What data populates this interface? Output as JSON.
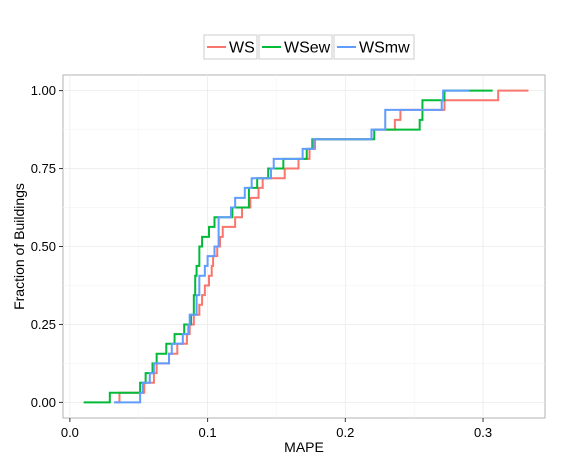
{
  "chart_data": {
    "type": "line",
    "step": true,
    "xlabel": "MAPE",
    "ylabel": "Fraction of Buildings",
    "xlim": [
      -0.005,
      0.345
    ],
    "ylim": [
      -0.05,
      1.05
    ],
    "x_ticks": [
      0.0,
      0.1,
      0.2,
      0.3
    ],
    "x_tick_labels": [
      "0.0",
      "0.1",
      "0.2",
      "0.3"
    ],
    "y_ticks": [
      0.0,
      0.25,
      0.5,
      0.75,
      1.0
    ],
    "y_tick_labels": [
      "0.00",
      "0.25",
      "0.50",
      "0.75",
      "1.00"
    ],
    "grid": true,
    "legend_position": "top",
    "series": [
      {
        "name": "WS",
        "color": "#f8766d",
        "points": [
          [
            0.033,
            0
          ],
          [
            0.036,
            0
          ],
          [
            0.036,
            0.031
          ],
          [
            0.054,
            0.031
          ],
          [
            0.054,
            0.063
          ],
          [
            0.061,
            0.063
          ],
          [
            0.061,
            0.094
          ],
          [
            0.063,
            0.094
          ],
          [
            0.063,
            0.125
          ],
          [
            0.072,
            0.125
          ],
          [
            0.072,
            0.156
          ],
          [
            0.078,
            0.156
          ],
          [
            0.078,
            0.188
          ],
          [
            0.085,
            0.188
          ],
          [
            0.085,
            0.219
          ],
          [
            0.087,
            0.219
          ],
          [
            0.087,
            0.25
          ],
          [
            0.09,
            0.25
          ],
          [
            0.09,
            0.281
          ],
          [
            0.094,
            0.281
          ],
          [
            0.094,
            0.313
          ],
          [
            0.096,
            0.313
          ],
          [
            0.096,
            0.344
          ],
          [
            0.098,
            0.344
          ],
          [
            0.098,
            0.375
          ],
          [
            0.101,
            0.375
          ],
          [
            0.101,
            0.406
          ],
          [
            0.103,
            0.406
          ],
          [
            0.103,
            0.438
          ],
          [
            0.104,
            0.438
          ],
          [
            0.104,
            0.469
          ],
          [
            0.107,
            0.469
          ],
          [
            0.107,
            0.5
          ],
          [
            0.109,
            0.5
          ],
          [
            0.109,
            0.531
          ],
          [
            0.111,
            0.531
          ],
          [
            0.111,
            0.563
          ],
          [
            0.12,
            0.563
          ],
          [
            0.12,
            0.594
          ],
          [
            0.125,
            0.594
          ],
          [
            0.125,
            0.625
          ],
          [
            0.131,
            0.625
          ],
          [
            0.131,
            0.656
          ],
          [
            0.137,
            0.656
          ],
          [
            0.137,
            0.688
          ],
          [
            0.14,
            0.688
          ],
          [
            0.14,
            0.719
          ],
          [
            0.156,
            0.719
          ],
          [
            0.156,
            0.75
          ],
          [
            0.166,
            0.75
          ],
          [
            0.166,
            0.781
          ],
          [
            0.174,
            0.781
          ],
          [
            0.174,
            0.813
          ],
          [
            0.178,
            0.813
          ],
          [
            0.178,
            0.844
          ],
          [
            0.219,
            0.844
          ],
          [
            0.219,
            0.875
          ],
          [
            0.236,
            0.875
          ],
          [
            0.236,
            0.906
          ],
          [
            0.24,
            0.906
          ],
          [
            0.24,
            0.938
          ],
          [
            0.272,
            0.938
          ],
          [
            0.272,
            0.969
          ],
          [
            0.311,
            0.969
          ],
          [
            0.311,
            1.0
          ],
          [
            0.333,
            1.0
          ]
        ]
      },
      {
        "name": "WSew",
        "color": "#00ba38",
        "points": [
          [
            0.01,
            0
          ],
          [
            0.029,
            0
          ],
          [
            0.029,
            0.031
          ],
          [
            0.051,
            0.031
          ],
          [
            0.051,
            0.063
          ],
          [
            0.055,
            0.063
          ],
          [
            0.055,
            0.094
          ],
          [
            0.06,
            0.094
          ],
          [
            0.06,
            0.125
          ],
          [
            0.063,
            0.125
          ],
          [
            0.063,
            0.156
          ],
          [
            0.07,
            0.156
          ],
          [
            0.07,
            0.188
          ],
          [
            0.076,
            0.188
          ],
          [
            0.076,
            0.219
          ],
          [
            0.083,
            0.219
          ],
          [
            0.083,
            0.25
          ],
          [
            0.088,
            0.25
          ],
          [
            0.088,
            0.281
          ],
          [
            0.09,
            0.281
          ],
          [
            0.09,
            0.344
          ],
          [
            0.091,
            0.344
          ],
          [
            0.091,
            0.406
          ],
          [
            0.092,
            0.406
          ],
          [
            0.092,
            0.438
          ],
          [
            0.094,
            0.438
          ],
          [
            0.094,
            0.5
          ],
          [
            0.096,
            0.5
          ],
          [
            0.096,
            0.531
          ],
          [
            0.101,
            0.531
          ],
          [
            0.101,
            0.563
          ],
          [
            0.105,
            0.563
          ],
          [
            0.105,
            0.594
          ],
          [
            0.118,
            0.594
          ],
          [
            0.118,
            0.625
          ],
          [
            0.13,
            0.625
          ],
          [
            0.13,
            0.688
          ],
          [
            0.136,
            0.688
          ],
          [
            0.136,
            0.719
          ],
          [
            0.144,
            0.719
          ],
          [
            0.144,
            0.75
          ],
          [
            0.155,
            0.75
          ],
          [
            0.155,
            0.781
          ],
          [
            0.172,
            0.781
          ],
          [
            0.172,
            0.813
          ],
          [
            0.176,
            0.813
          ],
          [
            0.176,
            0.844
          ],
          [
            0.221,
            0.844
          ],
          [
            0.221,
            0.875
          ],
          [
            0.254,
            0.875
          ],
          [
            0.254,
            0.906
          ],
          [
            0.256,
            0.906
          ],
          [
            0.256,
            0.969
          ],
          [
            0.272,
            0.969
          ],
          [
            0.272,
            1.0
          ],
          [
            0.307,
            1.0
          ]
        ]
      },
      {
        "name": "WSmw",
        "color": "#619cff",
        "points": [
          [
            0.032,
            0
          ],
          [
            0.051,
            0
          ],
          [
            0.051,
            0.031
          ],
          [
            0.053,
            0.031
          ],
          [
            0.053,
            0.063
          ],
          [
            0.058,
            0.063
          ],
          [
            0.058,
            0.094
          ],
          [
            0.061,
            0.094
          ],
          [
            0.061,
            0.125
          ],
          [
            0.072,
            0.125
          ],
          [
            0.072,
            0.156
          ],
          [
            0.074,
            0.156
          ],
          [
            0.074,
            0.188
          ],
          [
            0.082,
            0.188
          ],
          [
            0.082,
            0.219
          ],
          [
            0.086,
            0.219
          ],
          [
            0.086,
            0.25
          ],
          [
            0.087,
            0.25
          ],
          [
            0.087,
            0.281
          ],
          [
            0.092,
            0.281
          ],
          [
            0.092,
            0.344
          ],
          [
            0.094,
            0.344
          ],
          [
            0.094,
            0.406
          ],
          [
            0.098,
            0.406
          ],
          [
            0.098,
            0.438
          ],
          [
            0.1,
            0.438
          ],
          [
            0.1,
            0.469
          ],
          [
            0.105,
            0.469
          ],
          [
            0.105,
            0.5
          ],
          [
            0.108,
            0.5
          ],
          [
            0.108,
            0.594
          ],
          [
            0.117,
            0.594
          ],
          [
            0.117,
            0.625
          ],
          [
            0.12,
            0.625
          ],
          [
            0.12,
            0.656
          ],
          [
            0.127,
            0.656
          ],
          [
            0.127,
            0.688
          ],
          [
            0.132,
            0.688
          ],
          [
            0.132,
            0.719
          ],
          [
            0.146,
            0.719
          ],
          [
            0.146,
            0.75
          ],
          [
            0.148,
            0.75
          ],
          [
            0.148,
            0.781
          ],
          [
            0.169,
            0.781
          ],
          [
            0.169,
            0.813
          ],
          [
            0.177,
            0.813
          ],
          [
            0.177,
            0.844
          ],
          [
            0.219,
            0.844
          ],
          [
            0.219,
            0.875
          ],
          [
            0.229,
            0.875
          ],
          [
            0.229,
            0.938
          ],
          [
            0.27,
            0.938
          ],
          [
            0.27,
            0.969
          ],
          [
            0.271,
            0.969
          ],
          [
            0.271,
            1.0
          ],
          [
            0.29,
            1.0
          ]
        ]
      }
    ]
  }
}
